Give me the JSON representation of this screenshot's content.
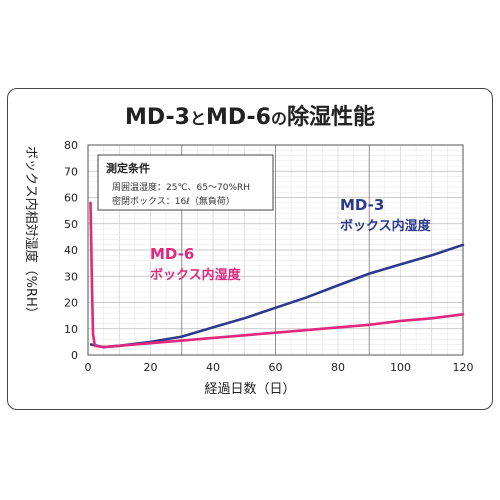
{
  "chart_data": {
    "type": "line",
    "title_parts": [
      "MD-3",
      "と",
      "MD-6",
      "の",
      "除湿性能"
    ],
    "xlabel": "経過日数（日）",
    "ylabel": "ボックス内相対湿度（%RH）",
    "xlim": [
      0,
      120
    ],
    "ylim": [
      0,
      80
    ],
    "x_ticks": [
      0,
      20,
      40,
      60,
      80,
      100,
      120
    ],
    "y_ticks": [
      0,
      10,
      20,
      30,
      40,
      50,
      60,
      70,
      80
    ],
    "grid": true,
    "conditions": {
      "heading": "測定条件",
      "lines": [
        "周囲温湿度：25℃、65～70%RH",
        "密閉ボックス：16ℓ（無負荷）"
      ]
    },
    "series": [
      {
        "name": "MD-3",
        "label_lines": [
          "MD-3",
          "ボックス内湿度"
        ],
        "color": "#2b3a8c",
        "points": [
          [
            1,
            4
          ],
          [
            5,
            3
          ],
          [
            10,
            3.5
          ],
          [
            20,
            5
          ],
          [
            30,
            7
          ],
          [
            40,
            10.5
          ],
          [
            50,
            14
          ],
          [
            60,
            18
          ],
          [
            70,
            22
          ],
          [
            80,
            26.5
          ],
          [
            90,
            31
          ],
          [
            100,
            34.5
          ],
          [
            110,
            38
          ],
          [
            120,
            42
          ]
        ]
      },
      {
        "name": "MD-6",
        "label_lines": [
          "MD-6",
          "ボックス内湿度"
        ],
        "color": "#e0287f",
        "points": [
          [
            0.8,
            58
          ],
          [
            1.2,
            30
          ],
          [
            1.6,
            8
          ],
          [
            2.2,
            3.5
          ],
          [
            5,
            3
          ],
          [
            10,
            3.5
          ],
          [
            20,
            4.5
          ],
          [
            30,
            5.5
          ],
          [
            40,
            6.5
          ],
          [
            50,
            7.5
          ],
          [
            60,
            8.5
          ],
          [
            70,
            9.5
          ],
          [
            80,
            10.5
          ],
          [
            90,
            11.5
          ],
          [
            100,
            13
          ],
          [
            110,
            14
          ],
          [
            120,
            15.5
          ]
        ]
      }
    ]
  }
}
